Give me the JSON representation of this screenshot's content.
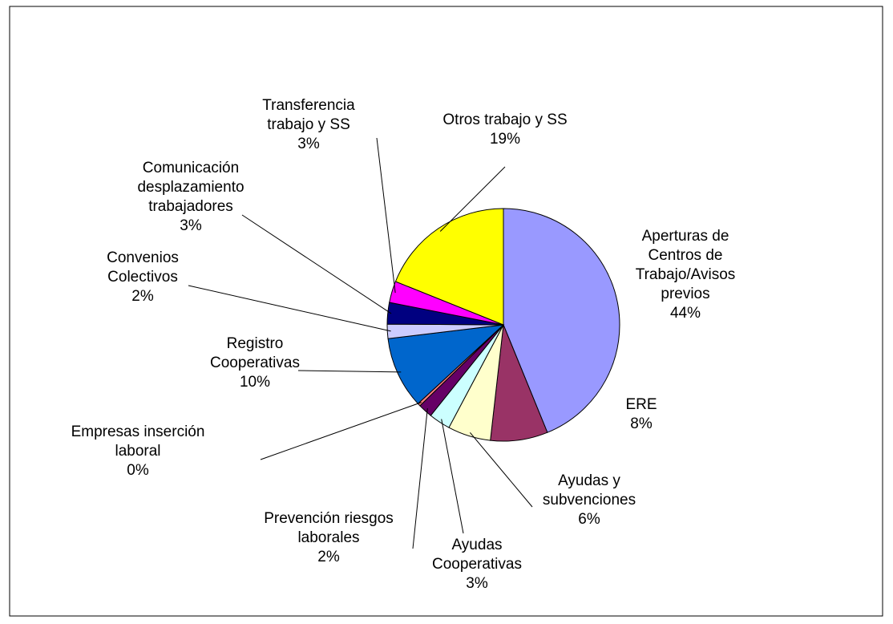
{
  "chart_data": {
    "type": "pie",
    "categories": [
      "Aperturas de\nCentros de\nTrabajo/Avisos\nprevios",
      "ERE",
      "Ayudas y\nsubvenciones",
      "Ayudas\nCooperativas",
      "Prevención riesgos\nlaborales",
      "Empresas inserción\nlaboral",
      "Registro\nCooperativas",
      "Convenios\nColectivos",
      "Comunicación\ndesplazamiento\ntrabajadores",
      "Transferencia\ntrabajo y SS",
      "Otros trabajo y SS"
    ],
    "values": [
      44,
      8,
      6,
      3,
      2,
      0.4,
      10,
      2,
      3,
      3,
      19
    ],
    "value_labels": [
      "44%",
      "8%",
      "6%",
      "3%",
      "2%",
      "0%",
      "10%",
      "2%",
      "3%",
      "3%",
      "19%"
    ],
    "colors": [
      "#9999ff",
      "#993366",
      "#ffffcc",
      "#ccffff",
      "#660066",
      "#ff8080",
      "#0066cc",
      "#ccccff",
      "#000080",
      "#ff00ff",
      "#ffff00"
    ]
  }
}
